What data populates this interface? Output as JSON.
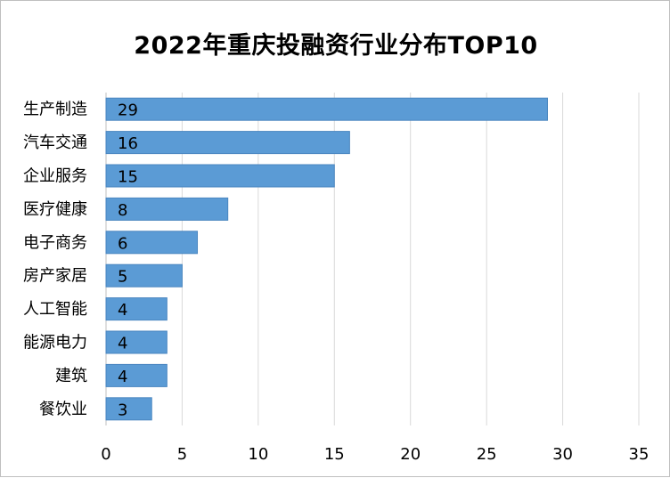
{
  "chart_data": {
    "type": "bar",
    "orientation": "horizontal",
    "title": "2022年重庆投融资行业分布TOP10",
    "categories": [
      "生产制造",
      "汽车交通",
      "企业服务",
      "医疗健康",
      "电子商务",
      "房产家居",
      "人工智能",
      "能源电力",
      "建筑",
      "餐饮业"
    ],
    "values": [
      29,
      16,
      15,
      8,
      6,
      5,
      4,
      4,
      4,
      3
    ],
    "xlim": [
      0,
      35
    ],
    "xticks": [
      0,
      5,
      10,
      15,
      20,
      25,
      30,
      35
    ],
    "grid": "vertical",
    "legend": "none",
    "bar_color": "#5b9bd5",
    "grid_color": "#d9d9d9"
  }
}
